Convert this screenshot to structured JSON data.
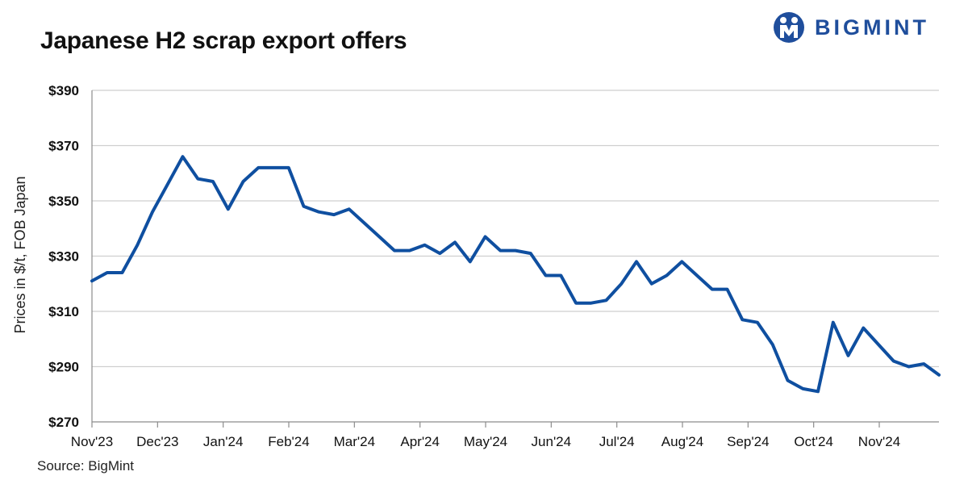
{
  "brand": {
    "name": "BIGMINT",
    "logo_color": "#1f4e9c"
  },
  "source_text": "Source: BigMint",
  "chart_data": {
    "type": "line",
    "title": "Japanese H2 scrap export offers",
    "xlabel": "",
    "ylabel": "Prices in $/t, FOB Japan",
    "ylim": [
      270,
      390
    ],
    "yticks": [
      270,
      290,
      310,
      330,
      350,
      370,
      390
    ],
    "ytick_labels": [
      "$270",
      "$290",
      "$310",
      "$330",
      "$350",
      "$370",
      "$390"
    ],
    "x_ticks": [
      "Nov'23",
      "Dec'23",
      "Jan'24",
      "Feb'24",
      "Mar'24",
      "Apr'24",
      "May'24",
      "Jun'24",
      "Jul'24",
      "Aug'24",
      "Sep'24",
      "Oct'24",
      "Nov'24"
    ],
    "grid": "horizontal",
    "series_color": "#0f4fa0",
    "series": [
      {
        "name": "",
        "values": [
          321,
          324,
          324,
          334,
          346,
          356,
          366,
          358,
          357,
          347,
          357,
          362,
          362,
          362,
          348,
          346,
          345,
          347,
          342,
          337,
          332,
          332,
          334,
          331,
          335,
          328,
          337,
          332,
          332,
          331,
          323,
          323,
          313,
          313,
          314,
          320,
          328,
          320,
          323,
          328,
          323,
          318,
          318,
          307,
          306,
          298,
          285,
          282,
          281,
          306,
          294,
          304,
          298,
          292,
          290,
          291,
          287
        ]
      }
    ]
  }
}
